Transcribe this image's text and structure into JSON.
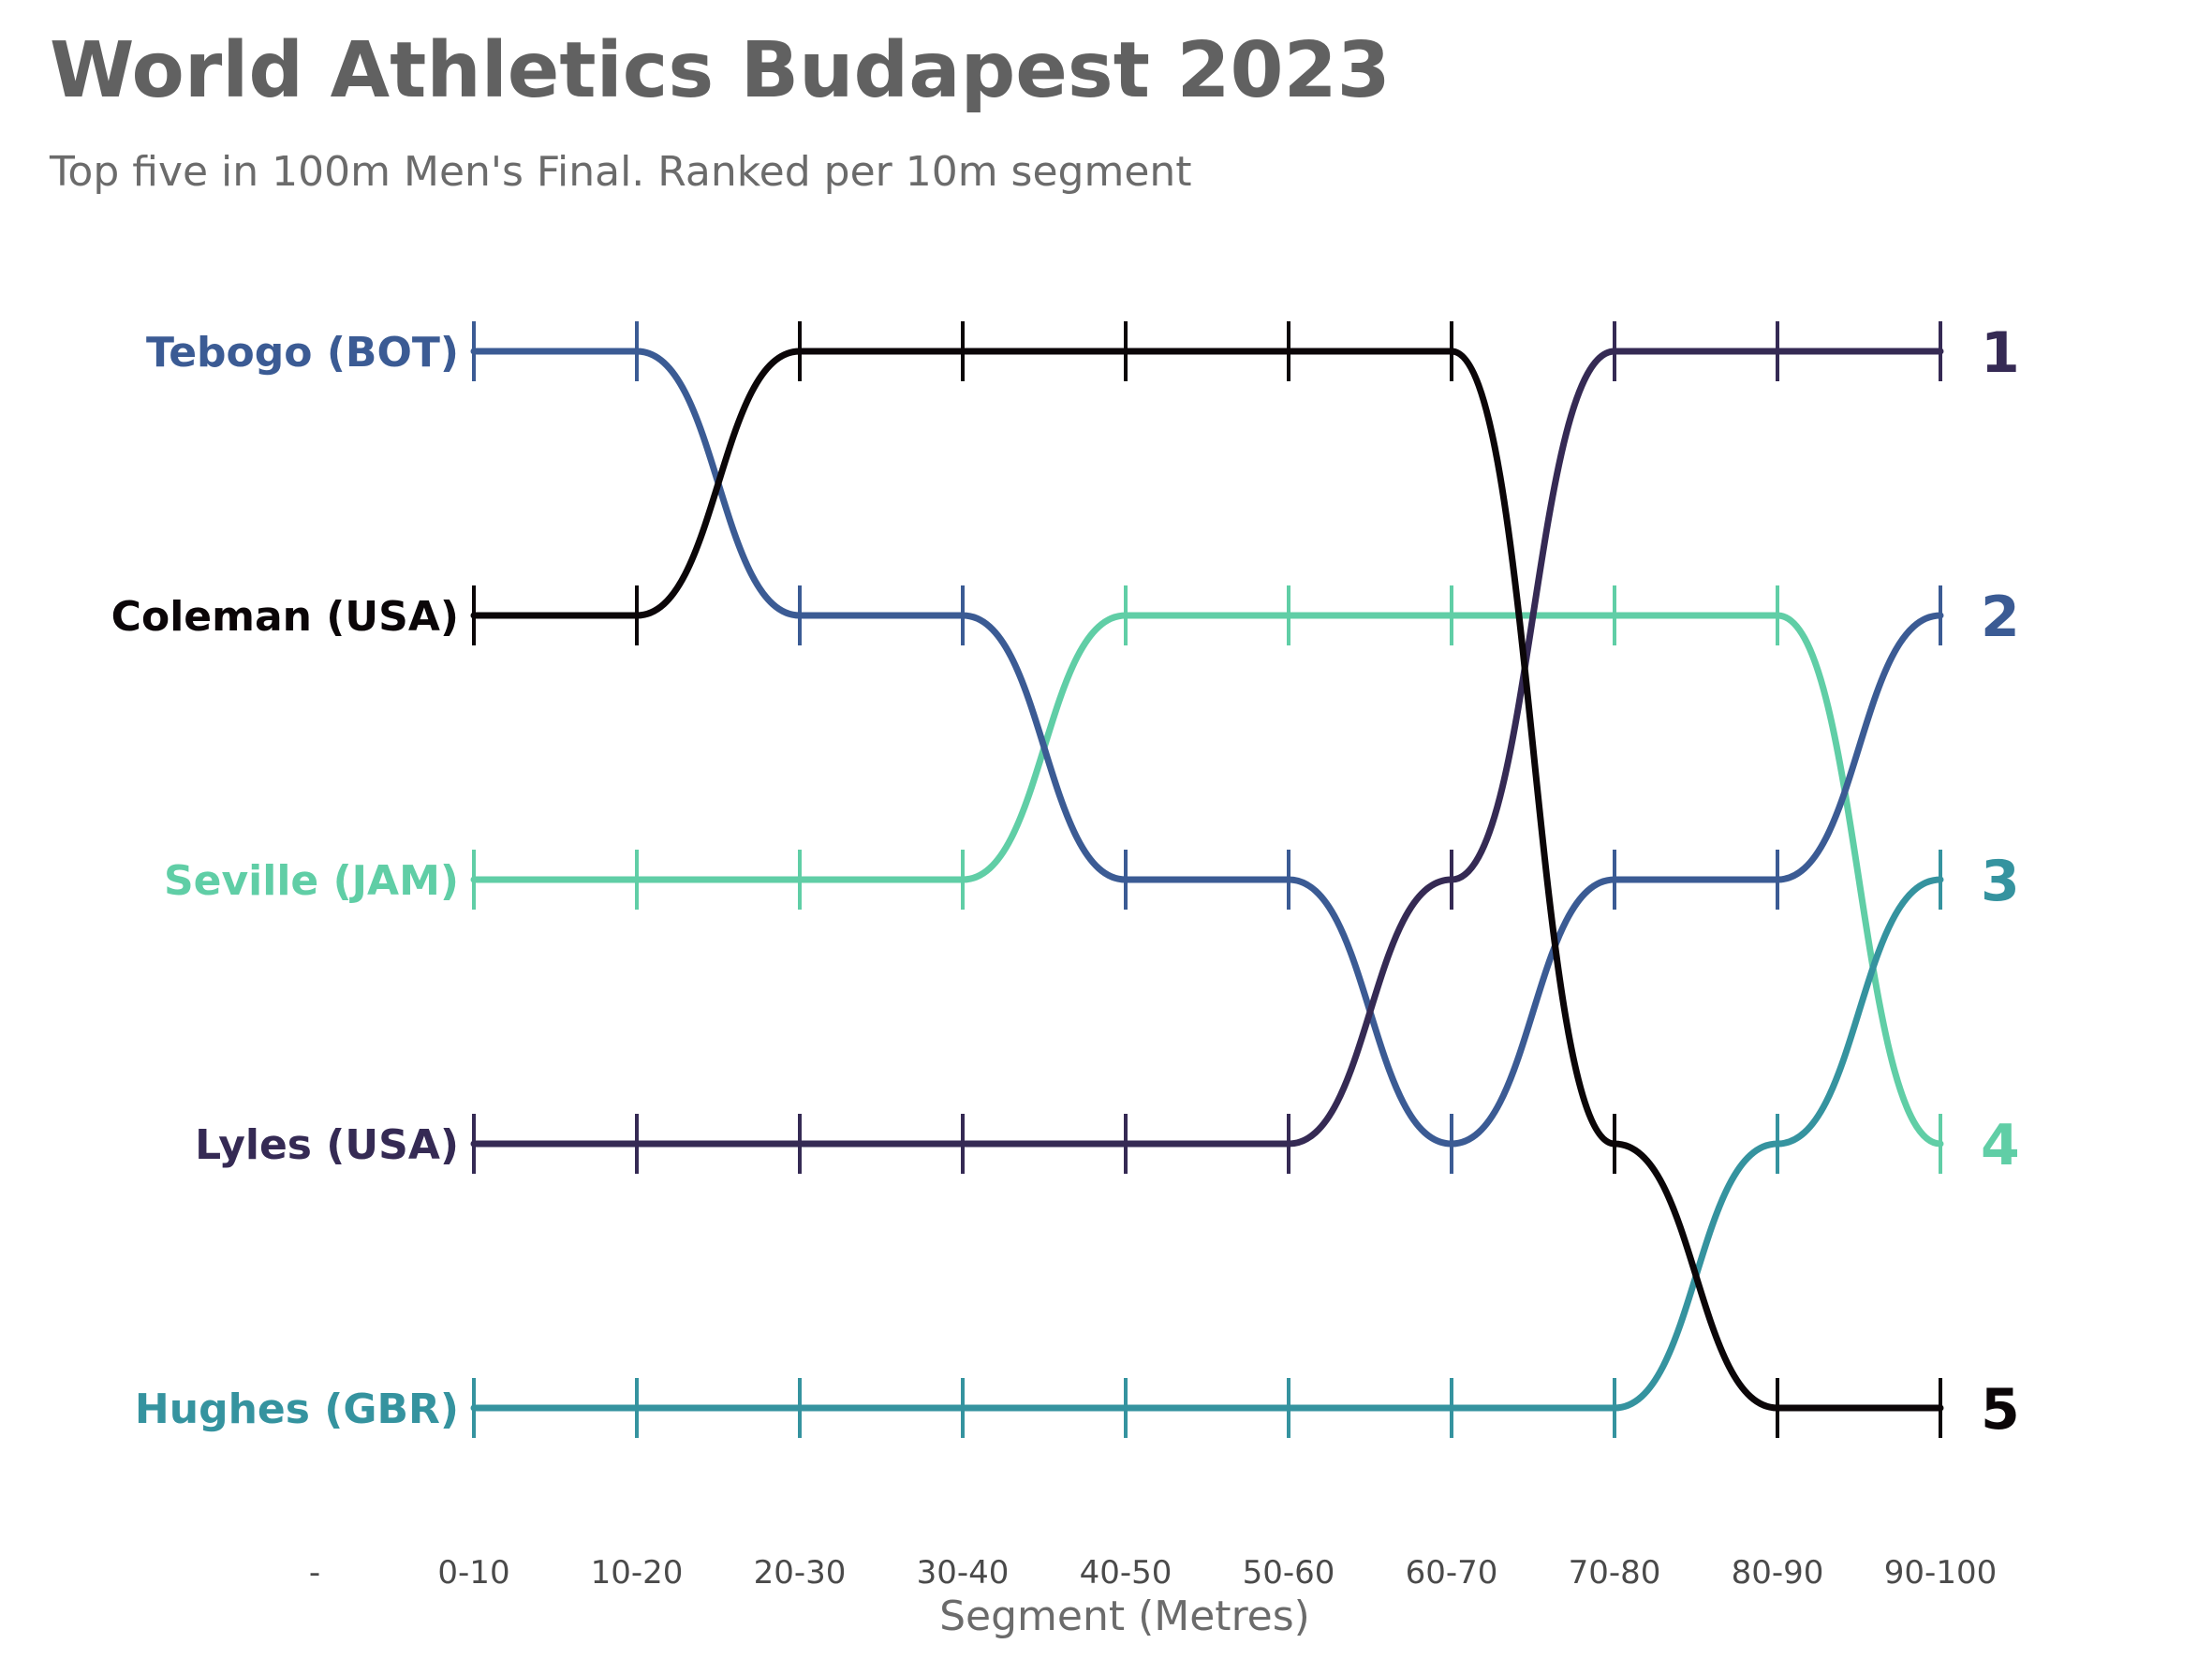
{
  "title": "World Athletics Budapest 2023",
  "subtitle": "Top five in 100m Men's Final. Ranked per 10m segment",
  "chart_data": {
    "type": "line",
    "subtype": "bump",
    "title": "World Athletics Budapest 2023",
    "subtitle": "Top five in 100m Men's Final. Ranked per 10m segment",
    "xlabel": "Segment (Metres)",
    "ylabel": "",
    "x_tick_labels": [
      "-",
      "0-10",
      "10-20",
      "20-30",
      "30-40",
      "40-50",
      "50-60",
      "60-70",
      "70-80",
      "80-90",
      "90-100"
    ],
    "categories": [
      "0-10",
      "10-20",
      "20-30",
      "30-40",
      "40-50",
      "50-60",
      "60-70",
      "70-80",
      "80-90",
      "90-100"
    ],
    "ylim": [
      5,
      1
    ],
    "grid": false,
    "legend": "none",
    "series": [
      {
        "name": "Tebogo (BOT)",
        "color": "#3b5b94",
        "values": [
          1,
          1,
          2,
          2,
          3,
          3,
          4,
          3,
          3,
          2
        ]
      },
      {
        "name": "Coleman (USA)",
        "color": "#0b0608",
        "values": [
          2,
          2,
          1,
          1,
          1,
          1,
          1,
          4,
          5,
          5
        ]
      },
      {
        "name": "Seville (JAM)",
        "color": "#60cea6",
        "values": [
          3,
          3,
          3,
          3,
          2,
          2,
          2,
          2,
          2,
          4
        ]
      },
      {
        "name": "Lyles (USA)",
        "color": "#352a54",
        "values": [
          4,
          4,
          4,
          4,
          4,
          4,
          3,
          1,
          1,
          1
        ]
      },
      {
        "name": "Hughes (GBR)",
        "color": "#35939f",
        "values": [
          5,
          5,
          5,
          5,
          5,
          5,
          5,
          5,
          4,
          3
        ]
      }
    ]
  }
}
